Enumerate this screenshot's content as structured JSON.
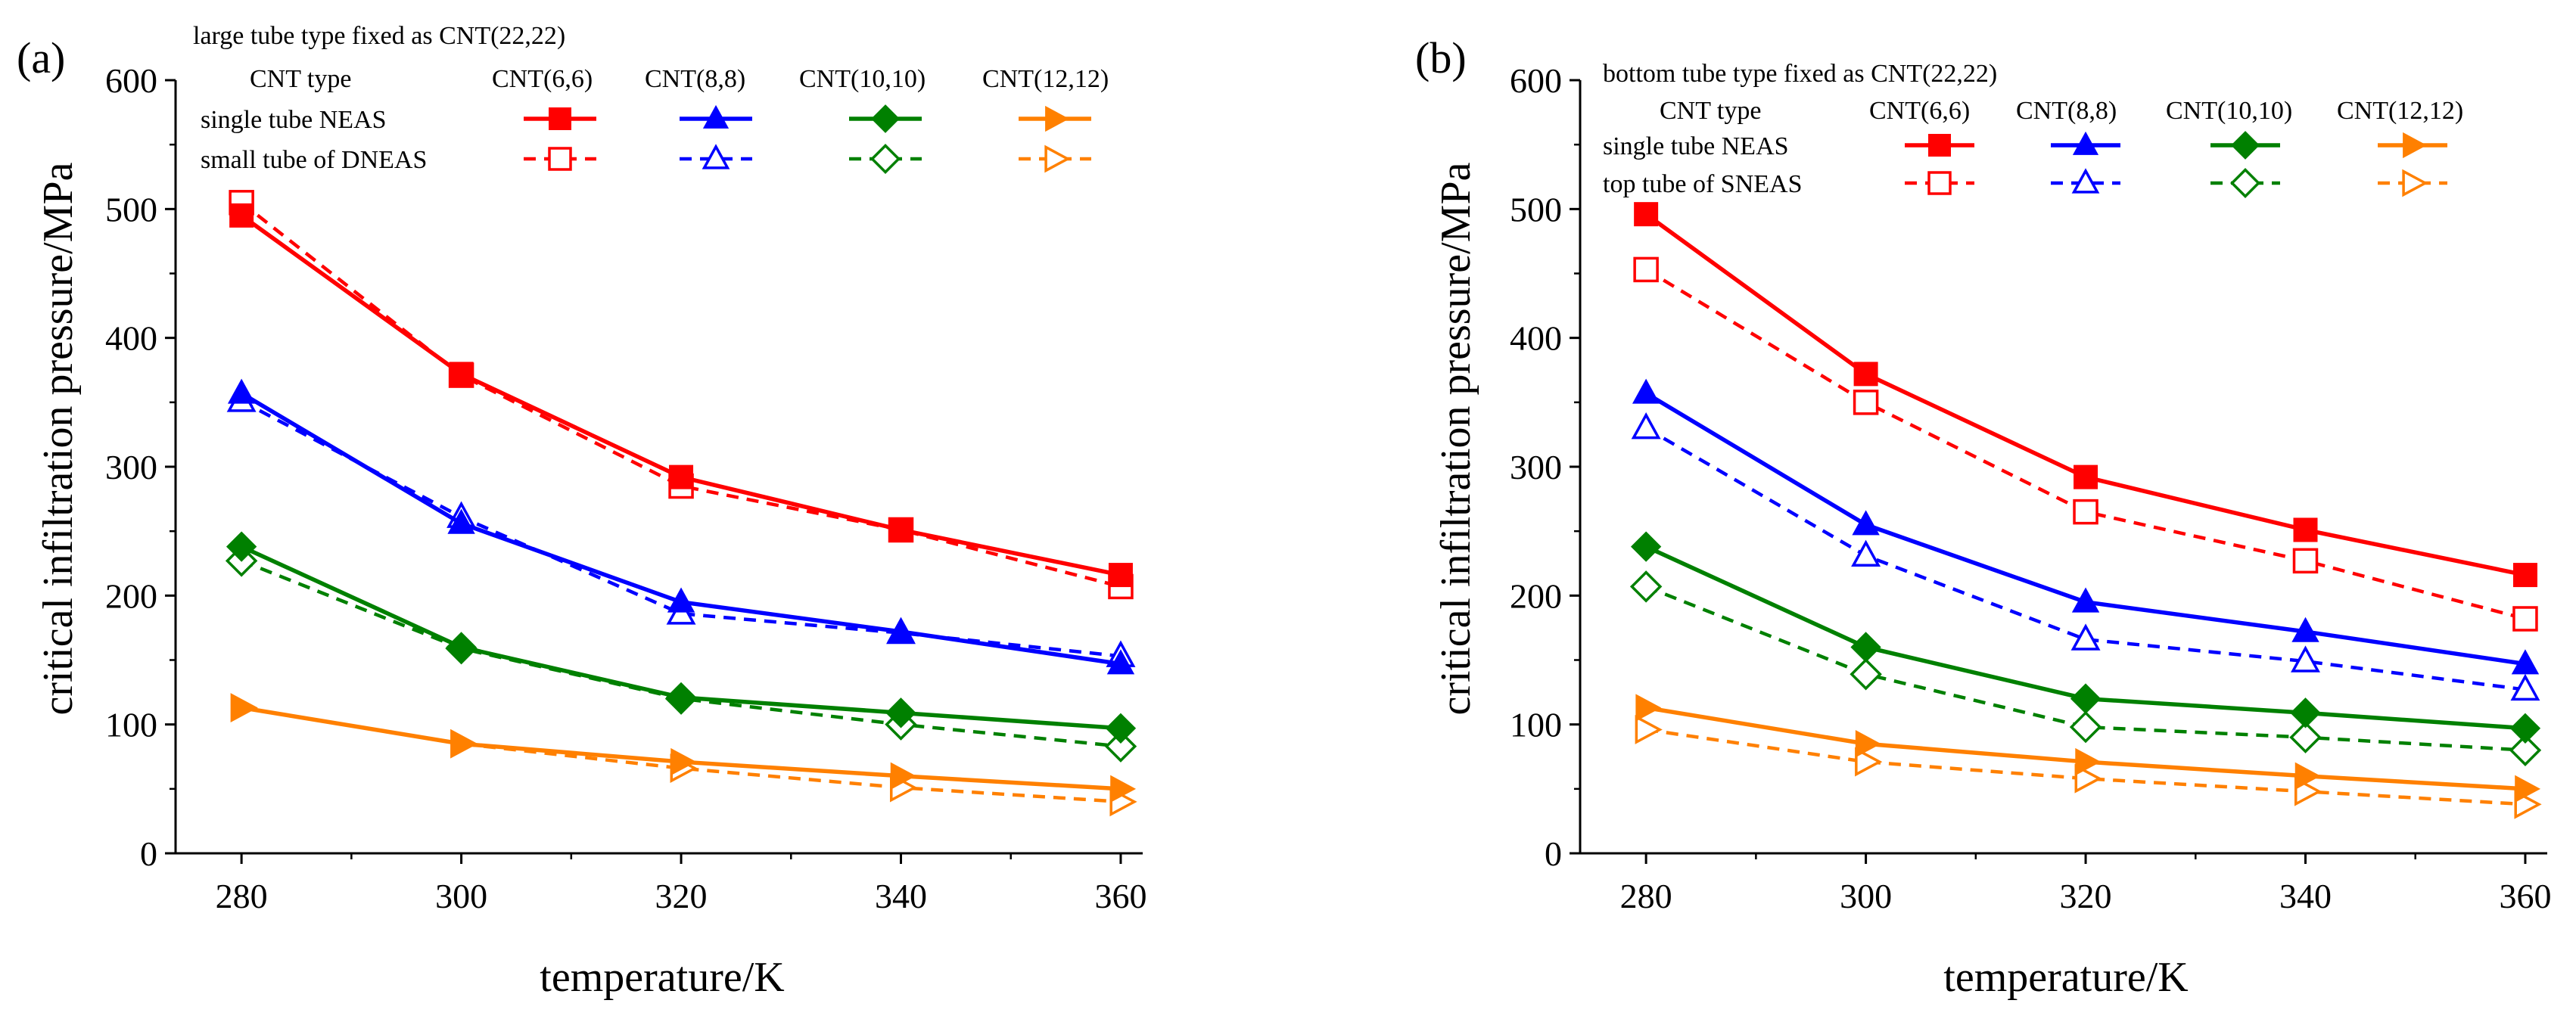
{
  "figure": {
    "panels": [
      "(a)",
      "(b)"
    ]
  },
  "colors": {
    "CNT(6,6)": "#ff0000",
    "CNT(8,8)": "#0000ff",
    "CNT(10,10)": "#008000",
    "CNT(12,12)": "#ff8000"
  },
  "chart_data": [
    {
      "type": "line",
      "panel": "(a)",
      "xlabel": "temperature/K",
      "ylabel": "critical infiltration pressure/MPa",
      "xlim": [
        274,
        362
      ],
      "ylim": [
        0,
        600
      ],
      "xticks": [
        280,
        300,
        320,
        340,
        360
      ],
      "yticks": [
        0,
        100,
        200,
        300,
        400,
        500,
        600
      ],
      "legend": {
        "title": "large tube type fixed as  CNT(22,22)",
        "type_header": "CNT type",
        "columns": [
          "CNT(6,6)",
          "CNT(8,8)",
          "CNT(10,10)",
          "CNT(12,12)"
        ],
        "rows": [
          "single tube NEAS",
          "small tube of DNEAS"
        ]
      },
      "x": [
        280,
        300,
        320,
        340,
        360
      ],
      "series": [
        {
          "name": "CNT(6,6) single tube NEAS",
          "cnt": "CNT(6,6)",
          "style": "solid",
          "marker": "square",
          "values": [
            495,
            372,
            292,
            251,
            216
          ]
        },
        {
          "name": "CNT(8,8) single tube NEAS",
          "cnt": "CNT(8,8)",
          "style": "solid",
          "marker": "triangle-up",
          "values": [
            357,
            256,
            195,
            172,
            147
          ]
        },
        {
          "name": "CNT(10,10) single tube NEAS",
          "cnt": "CNT(10,10)",
          "style": "solid",
          "marker": "diamond",
          "values": [
            238,
            160,
            121,
            109,
            97
          ]
        },
        {
          "name": "CNT(12,12) single tube NEAS",
          "cnt": "CNT(12,12)",
          "style": "solid",
          "marker": "triangle-right",
          "values": [
            113,
            85,
            71,
            60,
            50
          ]
        },
        {
          "name": "CNT(6,6) small tube of DNEAS",
          "cnt": "CNT(6,6)",
          "style": "dashed",
          "marker": "square-open",
          "values": [
            505,
            371,
            285,
            251,
            207
          ]
        },
        {
          "name": "CNT(8,8) small tube of DNEAS",
          "cnt": "CNT(8,8)",
          "style": "dashed",
          "marker": "triangle-up-open",
          "values": [
            351,
            261,
            186,
            171,
            153
          ]
        },
        {
          "name": "CNT(10,10) small tube of DNEAS",
          "cnt": "CNT(10,10)",
          "style": "dashed",
          "marker": "diamond-open",
          "values": [
            227,
            159,
            120,
            100,
            83
          ]
        },
        {
          "name": "CNT(12,12) small tube of DNEAS",
          "cnt": "CNT(12,12)",
          "style": "dashed",
          "marker": "triangle-right-open",
          "values": [
            113,
            85,
            66,
            51,
            40
          ]
        }
      ]
    },
    {
      "type": "line",
      "panel": "(b)",
      "xlabel": "temperature/K",
      "ylabel": "critical infiltration pressure/MPa",
      "xlim": [
        274,
        362
      ],
      "ylim": [
        0,
        600
      ],
      "xticks": [
        280,
        300,
        320,
        340,
        360
      ],
      "yticks": [
        0,
        100,
        200,
        300,
        400,
        500,
        600
      ],
      "legend": {
        "title": "bottom tube type fixed as CNT(22,22)",
        "type_header": "CNT type",
        "columns": [
          "CNT(6,6)",
          "CNT(8,8)",
          "CNT(10,10)",
          "CNT(12,12)"
        ],
        "rows": [
          "single tube NEAS",
          "top tube of SNEAS"
        ]
      },
      "x": [
        280,
        300,
        320,
        340,
        360
      ],
      "series": [
        {
          "name": "CNT(6,6) single tube NEAS",
          "cnt": "CNT(6,6)",
          "style": "solid",
          "marker": "square",
          "values": [
            496,
            372,
            292,
            251,
            216
          ]
        },
        {
          "name": "CNT(8,8) single tube NEAS",
          "cnt": "CNT(8,8)",
          "style": "solid",
          "marker": "triangle-up",
          "values": [
            357,
            255,
            195,
            172,
            147
          ]
        },
        {
          "name": "CNT(10,10) single tube NEAS",
          "cnt": "CNT(10,10)",
          "style": "solid",
          "marker": "diamond",
          "values": [
            238,
            160,
            120,
            109,
            97
          ]
        },
        {
          "name": "CNT(12,12) single tube NEAS",
          "cnt": "CNT(12,12)",
          "style": "solid",
          "marker": "triangle-right",
          "values": [
            113,
            85,
            71,
            60,
            50
          ]
        },
        {
          "name": "CNT(6,6) top tube of SNEAS",
          "cnt": "CNT(6,6)",
          "style": "dashed",
          "marker": "square-open",
          "values": [
            453,
            350,
            265,
            227,
            182
          ]
        },
        {
          "name": "CNT(8,8) top tube of SNEAS",
          "cnt": "CNT(8,8)",
          "style": "dashed",
          "marker": "triangle-up-open",
          "values": [
            330,
            231,
            166,
            149,
            127
          ]
        },
        {
          "name": "CNT(10,10) top tube of SNEAS",
          "cnt": "CNT(10,10)",
          "style": "dashed",
          "marker": "diamond-open",
          "values": [
            207,
            139,
            98,
            90,
            80
          ]
        },
        {
          "name": "CNT(12,12) top tube of SNEAS",
          "cnt": "CNT(12,12)",
          "style": "dashed",
          "marker": "triangle-right-open",
          "values": [
            96,
            71,
            58,
            48,
            38
          ]
        }
      ]
    }
  ]
}
